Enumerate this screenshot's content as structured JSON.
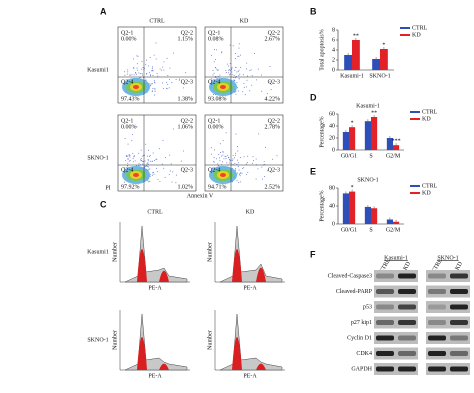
{
  "figure": {
    "panel_labels": [
      "A",
      "B",
      "C",
      "D",
      "E",
      "F"
    ],
    "flow": {
      "columns": [
        "CTRL",
        "KD"
      ],
      "rows": [
        "Kasumi1",
        "SKNO-1"
      ],
      "quadrant_names": [
        "Q2-1",
        "Q2-2",
        "Q2-4",
        "Q2-3"
      ],
      "percents": [
        [
          [
            "0.00%",
            "1.15%",
            "97.43%",
            "1.38%"
          ],
          [
            "0.08%",
            "2.67%",
            "93.08%",
            "4.22%"
          ]
        ],
        [
          [
            "0.00%",
            "1.06%",
            "97.92%",
            "1.02%"
          ],
          [
            "0.00%",
            "2.78%",
            "94.71%",
            "2.52%"
          ]
        ]
      ],
      "y_label": "PI",
      "x_label": "Annexin V"
    },
    "cell_cycle": {
      "columns": [
        "CTRL",
        "KD"
      ],
      "rows": [
        "Kasumi1",
        "SKNO-1"
      ],
      "y_label": "Number",
      "x_label": "PE-A"
    },
    "western": {
      "groups": [
        "Kasumi-1",
        "SKNO-1"
      ],
      "lanes": [
        "CTRL",
        "KD",
        "CTRL",
        "KD"
      ],
      "proteins": [
        "Cleaved-Caspase3",
        "Cleaved-PARP",
        "p53",
        "p27 kip1",
        "Cyclin D1",
        "CDK4",
        "GAPDH"
      ]
    }
  },
  "chart_data": [
    {
      "type": "bar",
      "y_label": "Total apoptosis%",
      "categories": [
        "Kasumi-1",
        "SKNO-1"
      ],
      "series": [
        {
          "name": "CTRL",
          "color": "#2f4fb8",
          "values": [
            3.0,
            2.2
          ]
        },
        {
          "name": "KD",
          "color": "#e32129",
          "values": [
            6.0,
            4.2
          ],
          "annotations": [
            "**",
            "*"
          ]
        }
      ],
      "ylim": [
        0,
        8
      ],
      "yticks": [
        0,
        2,
        4,
        6,
        8
      ]
    },
    {
      "type": "bar",
      "title": "Kasumi-1",
      "y_label": "Percentage%",
      "categories": [
        "G0/G1",
        "S",
        "G2/M"
      ],
      "series": [
        {
          "name": "CTRL",
          "color": "#2f4fb8",
          "values": [
            30,
            48,
            20
          ]
        },
        {
          "name": "KD",
          "color": "#e32129",
          "values": [
            38,
            55,
            8
          ],
          "annotations": [
            "*",
            "**",
            "***"
          ]
        }
      ],
      "ylim": [
        0,
        60
      ],
      "yticks": [
        0,
        20,
        40,
        60
      ]
    },
    {
      "type": "bar",
      "title": "SKNO-1",
      "y_label": "Percentage%",
      "categories": [
        "G0/G1",
        "S",
        "G2/M"
      ],
      "series": [
        {
          "name": "CTRL",
          "color": "#2f4fb8",
          "values": [
            68,
            38,
            10
          ]
        },
        {
          "name": "KD",
          "color": "#e32129",
          "values": [
            72,
            35,
            5
          ],
          "annotations": [
            "*",
            null,
            null
          ]
        }
      ],
      "ylim": [
        0,
        80
      ],
      "yticks": [
        0,
        40,
        80
      ]
    }
  ]
}
